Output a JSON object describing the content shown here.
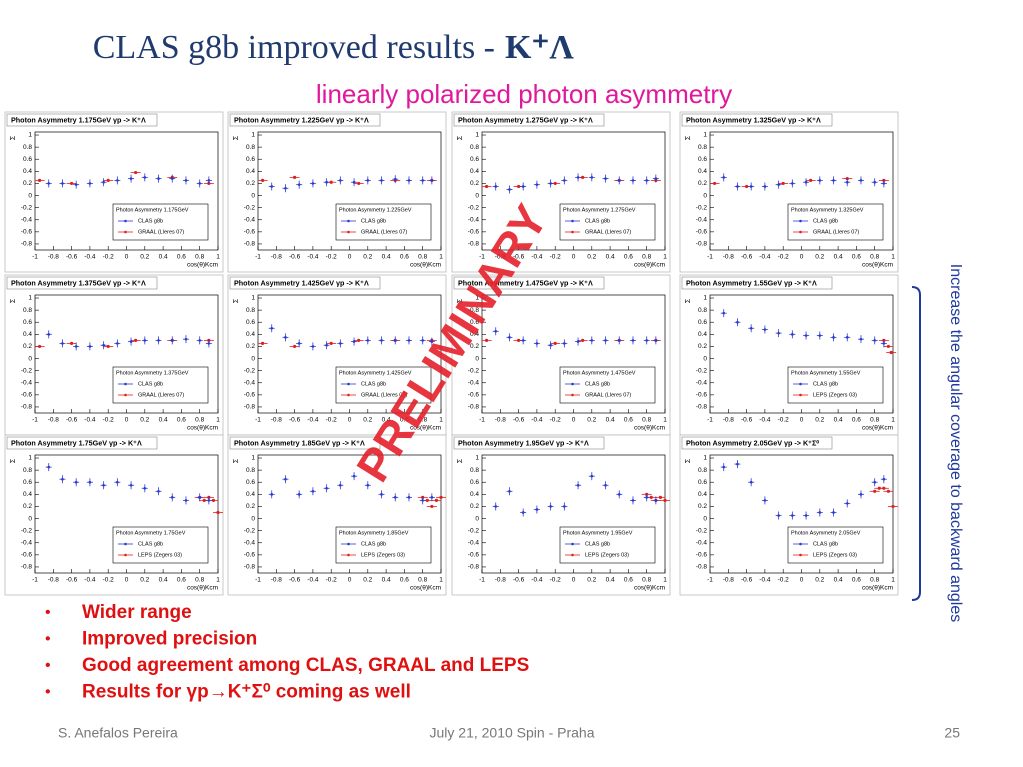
{
  "header": {
    "title": "CLAS g8b improved results -",
    "title_reaction": "K⁺Λ",
    "subtitle": "linearly polarized photon asymmetry"
  },
  "preliminary": "PRELIMINARY",
  "side_note": "Increase the angular coverage to backward angles",
  "bullets": [
    "Wider range",
    "Improved precision",
    "Good agreement among CLAS, GRAAL and LEPS",
    "Results for γp→K⁺Σ⁰ coming as well"
  ],
  "footer": {
    "author": "S. Anefalos Pereira",
    "event": "July 21, 2010 Spin - Praha",
    "page": "25"
  },
  "panels": {
    "x_label": "cos(θ)Kcm",
    "y_label": "Σ",
    "xlim": [
      -1,
      1
    ],
    "xticks": [
      -1,
      -0.8,
      -0.6,
      -0.4,
      -0.2,
      0,
      0.2,
      0.4,
      0.6,
      0.8,
      1
    ],
    "ylim": [
      -0.9,
      1.05
    ],
    "yticks": [
      -0.8,
      -0.6,
      -0.4,
      -0.2,
      0,
      0.2,
      0.4,
      0.6,
      0.8,
      1
    ],
    "clas_x": [
      -0.85,
      -0.7,
      -0.55,
      -0.4,
      -0.25,
      -0.1,
      0.05,
      0.2,
      0.35,
      0.5,
      0.65,
      0.8,
      0.9
    ],
    "items": [
      {
        "title": "Photon Asymmetry 1.175GeV  γp -> K⁺Λ",
        "legend_title": "Photon Asymmetry 1.175GeV",
        "legend": [
          "CLAS g8b",
          "GRAAL (Lleres 07)"
        ],
        "clas": [
          0.2,
          0.2,
          0.18,
          0.2,
          0.22,
          0.25,
          0.28,
          0.3,
          0.28,
          0.28,
          0.25,
          0.2,
          0.25
        ],
        "other_x": [
          -0.95,
          -0.6,
          -0.2,
          0.1,
          0.5,
          0.9
        ],
        "other": [
          0.25,
          0.2,
          0.25,
          0.38,
          0.3,
          0.2
        ]
      },
      {
        "title": "Photon Asymmetry 1.225GeV  γp -> K⁺Λ",
        "legend_title": "Photon Asymmetry 1.225GeV",
        "legend": [
          "CLAS g8b",
          "GRAAL (Lleres 07)"
        ],
        "clas": [
          0.15,
          0.12,
          0.18,
          0.2,
          0.22,
          0.25,
          0.22,
          0.25,
          0.25,
          0.27,
          0.25,
          0.25,
          0.25
        ],
        "other_x": [
          -0.95,
          -0.6,
          -0.2,
          0.1,
          0.5,
          0.9
        ],
        "other": [
          0.25,
          0.3,
          0.22,
          0.2,
          0.25,
          0.25
        ]
      },
      {
        "title": "Photon Asymmetry 1.275GeV  γp -> K⁺Λ",
        "legend_title": "Photon Asymmetry 1.275GeV",
        "legend": [
          "CLAS g8b",
          "GRAAL (Lleres 07)"
        ],
        "clas": [
          0.15,
          0.1,
          0.15,
          0.18,
          0.2,
          0.25,
          0.3,
          0.3,
          0.28,
          0.25,
          0.25,
          0.25,
          0.28
        ],
        "other_x": [
          -0.95,
          -0.6,
          -0.2,
          0.1,
          0.5,
          0.9
        ],
        "other": [
          0.15,
          0.15,
          0.2,
          0.3,
          0.25,
          0.25
        ]
      },
      {
        "title": "Photon Asymmetry 1.325GeV  γp -> K⁺Λ",
        "legend_title": "Photon Asymmetry 1.325GeV",
        "legend": [
          "CLAS g8b",
          "GRAAL (Lleres 07)"
        ],
        "clas": [
          0.3,
          0.15,
          0.15,
          0.15,
          0.18,
          0.2,
          0.22,
          0.25,
          0.25,
          0.22,
          0.25,
          0.22,
          0.2
        ],
        "other_x": [
          -0.95,
          -0.6,
          -0.2,
          0.1,
          0.5,
          0.9
        ],
        "other": [
          0.2,
          0.15,
          0.2,
          0.25,
          0.28,
          0.25
        ]
      },
      {
        "title": "Photon Asymmetry 1.375GeV  γp -> K⁺Λ",
        "legend_title": "Photon Asymmetry 1.375GeV",
        "legend": [
          "CLAS g8b",
          "GRAAL (Lleres 07)"
        ],
        "clas": [
          0.4,
          0.25,
          0.2,
          0.2,
          0.22,
          0.25,
          0.28,
          0.3,
          0.3,
          0.3,
          0.32,
          0.3,
          0.25
        ],
        "other_x": [
          -0.95,
          -0.6,
          -0.2,
          0.1,
          0.5,
          0.9
        ],
        "other": [
          0.2,
          0.25,
          0.2,
          0.3,
          0.3,
          0.3
        ]
      },
      {
        "title": "Photon Asymmetry 1.425GeV  γp -> K⁺Λ",
        "legend_title": "Photon Asymmetry 1.425GeV",
        "legend": [
          "CLAS g8b",
          "GRAAL (Lleres 07)"
        ],
        "clas": [
          0.5,
          0.35,
          0.25,
          0.2,
          0.22,
          0.25,
          0.28,
          0.3,
          0.3,
          0.3,
          0.3,
          0.3,
          0.28
        ],
        "other_x": [
          -0.95,
          -0.6,
          -0.2,
          0.1,
          0.5,
          0.9
        ],
        "other": [
          0.25,
          0.2,
          0.25,
          0.3,
          0.3,
          0.3
        ]
      },
      {
        "title": "Photon Asymmetry 1.475GeV  γp -> K⁺Λ",
        "legend_title": "Photon Asymmetry 1.475GeV",
        "legend": [
          "CLAS g8b",
          "GRAAL (Lleres 07)"
        ],
        "clas": [
          0.45,
          0.35,
          0.3,
          0.25,
          0.22,
          0.25,
          0.28,
          0.3,
          0.3,
          0.3,
          0.3,
          0.3,
          0.3
        ],
        "other_x": [
          -0.95,
          -0.6,
          -0.2,
          0.1,
          0.5,
          0.9
        ],
        "other": [
          0.3,
          0.3,
          0.25,
          0.3,
          0.3,
          0.3
        ]
      },
      {
        "title": "Photon Asymmetry 1.55GeV  γp -> K⁺Λ",
        "legend_title": "Photon Asymmetry 1.55GeV",
        "legend": [
          "CLAS g8b",
          "LEPS (Zegers 03)"
        ],
        "clas": [
          0.75,
          0.6,
          0.5,
          0.48,
          0.42,
          0.4,
          0.38,
          0.38,
          0.35,
          0.35,
          0.32,
          0.3,
          0.25
        ],
        "other_x": [
          0.9,
          0.95,
          0.98
        ],
        "other": [
          0.3,
          0.2,
          0.1
        ]
      },
      {
        "title": "Photon Asymmetry 1.75GeV  γp -> K⁺Λ",
        "legend_title": "Photon Asymmetry 1.75GeV",
        "legend": [
          "CLAS g8b",
          "LEPS (Zegers 03)"
        ],
        "clas": [
          0.85,
          0.65,
          0.6,
          0.6,
          0.55,
          0.6,
          0.55,
          0.5,
          0.45,
          0.35,
          0.3,
          0.35,
          0.3
        ],
        "other_x": [
          0.8,
          0.85,
          0.9,
          0.95,
          1
        ],
        "other": [
          0.35,
          0.3,
          0.35,
          0.3,
          0.1
        ]
      },
      {
        "title": "Photon Asymmetry 1.85GeV  γp -> K⁺Λ",
        "legend_title": "Photon Asymmetry 1.85GeV",
        "legend": [
          "CLAS g8b",
          "LEPS (Zegers 03)"
        ],
        "clas": [
          0.4,
          0.65,
          0.4,
          0.45,
          0.5,
          0.55,
          0.7,
          0.55,
          0.4,
          0.35,
          0.35,
          0.3,
          0.35
        ],
        "other_x": [
          0.8,
          0.85,
          0.9,
          0.95,
          1
        ],
        "other": [
          0.35,
          0.3,
          0.2,
          0.3,
          0.35
        ]
      },
      {
        "title": "Photon Asymmetry 1.95GeV  γp -> K⁺Λ",
        "legend_title": "Photon Asymmetry 1.95GeV",
        "legend": [
          "CLAS g8b",
          "LEPS (Zegers 03)"
        ],
        "clas": [
          0.2,
          0.45,
          0.1,
          0.15,
          0.2,
          0.2,
          0.55,
          0.7,
          0.55,
          0.4,
          0.3,
          0.35,
          0.3
        ],
        "other_x": [
          0.8,
          0.85,
          0.9,
          0.95,
          1
        ],
        "other": [
          0.4,
          0.35,
          0.3,
          0.35,
          0.3
        ]
      },
      {
        "title": "Photon Asymmetry 2.05GeV  γp -> K⁺Σ⁰",
        "legend_title": "Photon Asymmetry 2.05GeV",
        "legend": [
          "CLAS g8b",
          "LEPS (Zegers 03)"
        ],
        "clas": [
          0.85,
          0.9,
          0.6,
          0.3,
          0.05,
          0.05,
          0.05,
          0.1,
          0.1,
          0.25,
          0.4,
          0.6,
          0.65
        ],
        "other_x": [
          0.8,
          0.85,
          0.9,
          0.95,
          1
        ],
        "other": [
          0.45,
          0.5,
          0.5,
          0.45,
          0.2
        ]
      }
    ]
  }
}
